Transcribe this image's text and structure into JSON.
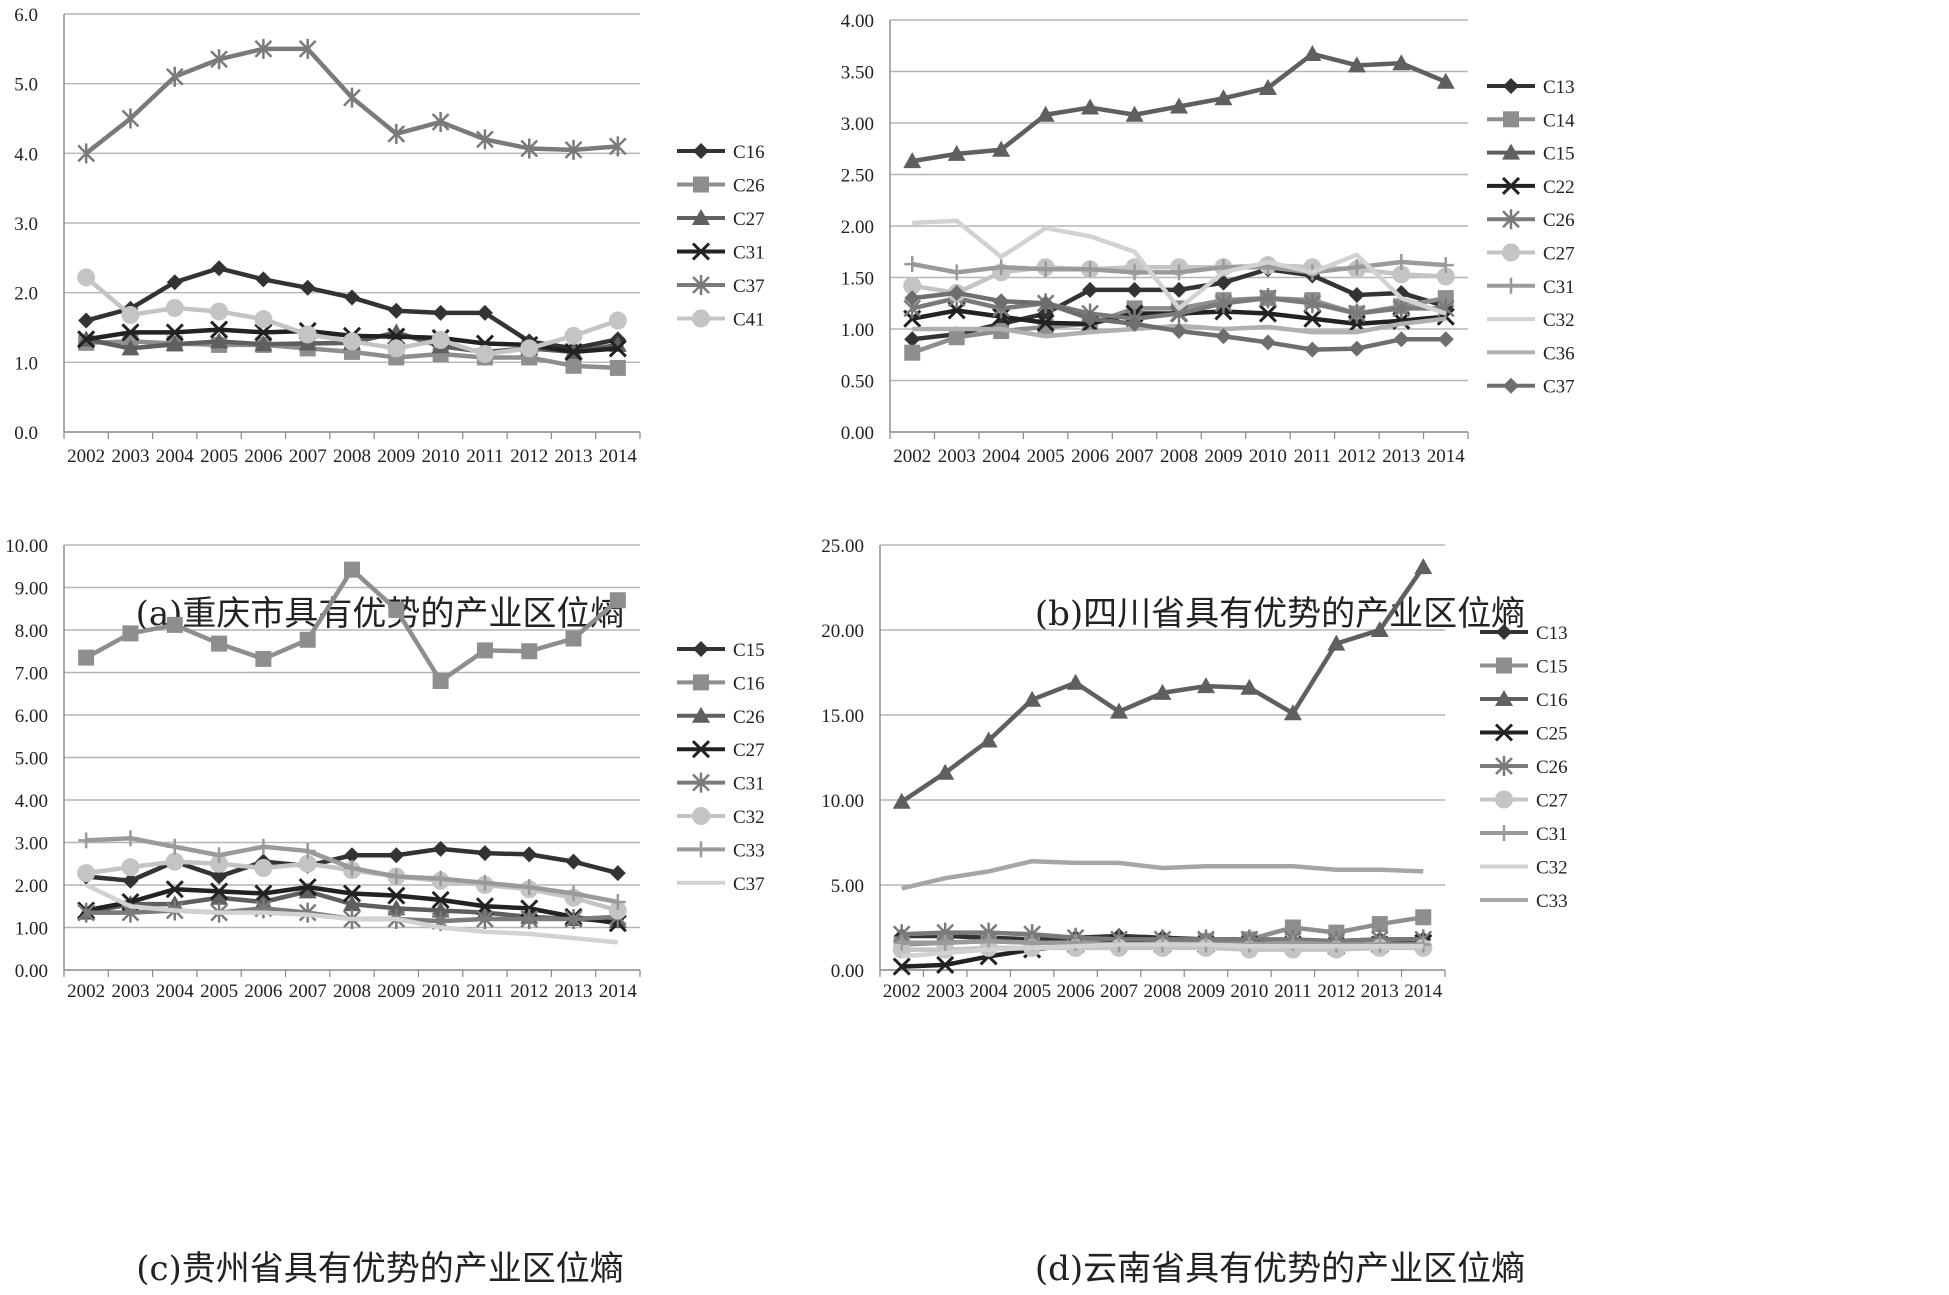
{
  "chart_data": [
    {
      "type": "line",
      "caption": "(a)重庆市具有优势的产业区位熵",
      "categories": [
        "2002",
        "2003",
        "2004",
        "2005",
        "2006",
        "2007",
        "2008",
        "2009",
        "2010",
        "2011",
        "2012",
        "2013",
        "2014"
      ],
      "ylim": [
        0,
        6
      ],
      "yticks": [
        "0.0",
        "1.0",
        "2.0",
        "3.0",
        "4.0",
        "5.0",
        "6.0"
      ],
      "legend_position": "right",
      "grid": true,
      "series": [
        {
          "name": "C16",
          "color": "#333333",
          "marker": "diamond",
          "values": [
            1.6,
            1.77,
            2.15,
            2.35,
            2.19,
            2.07,
            1.93,
            1.74,
            1.71,
            1.71,
            1.3,
            1.2,
            1.33
          ]
        },
        {
          "name": "C26",
          "color": "#8e8e8e",
          "marker": "square",
          "values": [
            1.28,
            1.3,
            1.27,
            1.25,
            1.25,
            1.2,
            1.15,
            1.07,
            1.12,
            1.07,
            1.07,
            0.95,
            0.92
          ]
        },
        {
          "name": "C27",
          "color": "#5f5f5f",
          "marker": "triangle",
          "values": [
            1.33,
            1.2,
            1.26,
            1.3,
            1.26,
            1.27,
            1.28,
            1.43,
            1.23,
            1.15,
            1.2,
            1.15,
            1.25
          ]
        },
        {
          "name": "C31",
          "color": "#222222",
          "marker": "x",
          "values": [
            1.33,
            1.43,
            1.43,
            1.47,
            1.43,
            1.45,
            1.38,
            1.37,
            1.35,
            1.27,
            1.25,
            1.15,
            1.2
          ]
        },
        {
          "name": "C37",
          "color": "#7a7a7a",
          "marker": "star",
          "values": [
            4.0,
            4.5,
            5.1,
            5.35,
            5.5,
            5.5,
            4.8,
            4.28,
            4.45,
            4.2,
            4.07,
            4.05,
            4.1
          ]
        },
        {
          "name": "C41",
          "color": "#c4c4c4",
          "marker": "circle",
          "values": [
            2.22,
            1.68,
            1.78,
            1.73,
            1.62,
            1.4,
            1.3,
            1.2,
            1.32,
            1.12,
            1.2,
            1.38,
            1.6
          ]
        }
      ]
    },
    {
      "type": "line",
      "caption": "(b)四川省具有优势的产业区位熵",
      "categories": [
        "2002",
        "2003",
        "2004",
        "2005",
        "2006",
        "2007",
        "2008",
        "2009",
        "2010",
        "2011",
        "2012",
        "2013",
        "2014"
      ],
      "ylim": [
        0,
        4
      ],
      "yticks": [
        "0.00",
        "0.50",
        "1.00",
        "1.50",
        "2.00",
        "2.50",
        "3.00",
        "3.50",
        "4.00"
      ],
      "legend_position": "right",
      "grid": true,
      "series": [
        {
          "name": "C13",
          "color": "#333333",
          "marker": "diamond",
          "values": [
            0.9,
            0.95,
            1.05,
            1.15,
            1.38,
            1.38,
            1.38,
            1.45,
            1.58,
            1.52,
            1.33,
            1.35,
            1.22
          ]
        },
        {
          "name": "C14",
          "color": "#8e8e8e",
          "marker": "square",
          "values": [
            0.77,
            0.92,
            0.98,
            1.02,
            1.05,
            1.2,
            1.2,
            1.28,
            1.3,
            1.28,
            1.15,
            1.22,
            1.3
          ]
        },
        {
          "name": "C15",
          "color": "#5f5f5f",
          "marker": "triangle",
          "values": [
            2.63,
            2.7,
            2.74,
            3.08,
            3.15,
            3.08,
            3.16,
            3.24,
            3.34,
            3.67,
            3.56,
            3.58,
            3.4
          ]
        },
        {
          "name": "C22",
          "color": "#222222",
          "marker": "x",
          "values": [
            1.1,
            1.18,
            1.12,
            1.06,
            1.05,
            1.15,
            1.15,
            1.17,
            1.15,
            1.1,
            1.05,
            1.08,
            1.12
          ]
        },
        {
          "name": "C26",
          "color": "#7a7a7a",
          "marker": "star",
          "values": [
            1.2,
            1.3,
            1.2,
            1.25,
            1.15,
            1.1,
            1.15,
            1.25,
            1.3,
            1.25,
            1.15,
            1.2,
            1.2
          ]
        },
        {
          "name": "C27",
          "color": "#c4c4c4",
          "marker": "circle",
          "values": [
            1.42,
            1.35,
            1.55,
            1.6,
            1.58,
            1.6,
            1.6,
            1.6,
            1.62,
            1.6,
            1.58,
            1.53,
            1.51
          ]
        },
        {
          "name": "C31",
          "color": "#9a9a9a",
          "marker": "plus",
          "values": [
            1.63,
            1.55,
            1.6,
            1.58,
            1.58,
            1.55,
            1.55,
            1.6,
            1.6,
            1.55,
            1.6,
            1.65,
            1.62
          ]
        },
        {
          "name": "C32",
          "color": "#d2d2d2",
          "marker": "none",
          "values": [
            2.03,
            2.05,
            1.7,
            1.98,
            1.9,
            1.75,
            1.2,
            1.55,
            1.65,
            1.55,
            1.72,
            1.3,
            1.15
          ]
        },
        {
          "name": "C36",
          "color": "#b0b0b0",
          "marker": "none",
          "values": [
            1.0,
            1.0,
            1.0,
            0.93,
            0.97,
            1.0,
            1.03,
            1.0,
            1.02,
            0.97,
            0.97,
            1.05,
            1.1
          ]
        },
        {
          "name": "C37",
          "color": "#6e6e6e",
          "marker": "diamond",
          "values": [
            1.3,
            1.35,
            1.27,
            1.25,
            1.1,
            1.05,
            0.98,
            0.93,
            0.87,
            0.8,
            0.81,
            0.9,
            0.9
          ]
        }
      ]
    },
    {
      "type": "line",
      "caption": "(c)贵州省具有优势的产业区位熵",
      "categories": [
        "2002",
        "2003",
        "2004",
        "2005",
        "2006",
        "2007",
        "2008",
        "2009",
        "2010",
        "2011",
        "2012",
        "2013",
        "2014"
      ],
      "ylim": [
        0,
        10
      ],
      "yticks": [
        "0.00",
        "1.00",
        "2.00",
        "3.00",
        "4.00",
        "5.00",
        "6.00",
        "7.00",
        "8.00",
        "9.00",
        "10.00"
      ],
      "legend_position": "right",
      "grid": true,
      "series": [
        {
          "name": "C15",
          "color": "#333333",
          "marker": "diamond",
          "values": [
            2.2,
            2.1,
            2.55,
            2.2,
            2.55,
            2.45,
            2.7,
            2.7,
            2.85,
            2.75,
            2.72,
            2.55,
            2.28
          ]
        },
        {
          "name": "C16",
          "color": "#8e8e8e",
          "marker": "square",
          "values": [
            7.35,
            7.92,
            8.12,
            7.68,
            7.32,
            7.77,
            9.42,
            8.48,
            6.8,
            7.52,
            7.5,
            7.8,
            8.7
          ]
        },
        {
          "name": "C26",
          "color": "#5f5f5f",
          "marker": "triangle",
          "values": [
            1.35,
            1.55,
            1.55,
            1.7,
            1.6,
            1.85,
            1.55,
            1.45,
            1.4,
            1.35,
            1.25,
            1.2,
            1.15
          ]
        },
        {
          "name": "C27",
          "color": "#222222",
          "marker": "x",
          "values": [
            1.4,
            1.6,
            1.9,
            1.85,
            1.8,
            1.95,
            1.8,
            1.75,
            1.65,
            1.5,
            1.45,
            1.25,
            1.1
          ]
        },
        {
          "name": "C31",
          "color": "#7a7a7a",
          "marker": "star",
          "values": [
            1.35,
            1.35,
            1.4,
            1.35,
            1.45,
            1.35,
            1.2,
            1.2,
            1.15,
            1.2,
            1.2,
            1.2,
            1.25
          ]
        },
        {
          "name": "C32",
          "color": "#c4c4c4",
          "marker": "circle",
          "values": [
            2.28,
            2.42,
            2.55,
            2.5,
            2.4,
            2.5,
            2.35,
            2.2,
            2.1,
            2.0,
            1.9,
            1.7,
            1.4
          ]
        },
        {
          "name": "C33",
          "color": "#9a9a9a",
          "marker": "plus",
          "values": [
            3.05,
            3.1,
            2.9,
            2.7,
            2.9,
            2.8,
            2.4,
            2.2,
            2.15,
            2.05,
            1.95,
            1.8,
            1.6
          ]
        },
        {
          "name": "C37",
          "color": "#d2d2d2",
          "marker": "none",
          "values": [
            2.0,
            1.5,
            1.4,
            1.35,
            1.35,
            1.3,
            1.2,
            1.2,
            1.0,
            0.9,
            0.85,
            0.75,
            0.65
          ]
        }
      ]
    },
    {
      "type": "line",
      "caption": "(d)云南省具有优势的产业区位熵",
      "categories": [
        "2002",
        "2003",
        "2004",
        "2005",
        "2006",
        "2007",
        "2008",
        "2009",
        "2010",
        "2011",
        "2012",
        "2013",
        "2014"
      ],
      "ylim": [
        0,
        25
      ],
      "yticks": [
        "0.00",
        "5.00",
        "10.00",
        "15.00",
        "20.00",
        "25.00"
      ],
      "legend_position": "right",
      "grid": true,
      "series": [
        {
          "name": "C13",
          "color": "#333333",
          "marker": "diamond",
          "values": [
            2.0,
            2.0,
            1.9,
            1.8,
            1.9,
            2.0,
            1.9,
            1.8,
            1.8,
            1.7,
            1.7,
            1.8,
            1.8
          ]
        },
        {
          "name": "C15",
          "color": "#8e8e8e",
          "marker": "square",
          "values": [
            1.5,
            1.6,
            1.7,
            1.6,
            1.6,
            1.6,
            1.6,
            1.7,
            1.8,
            2.5,
            2.2,
            2.7,
            3.1
          ]
        },
        {
          "name": "C16",
          "color": "#5f5f5f",
          "marker": "triangle",
          "values": [
            9.9,
            11.6,
            13.5,
            15.9,
            16.9,
            15.2,
            16.3,
            16.7,
            16.6,
            15.1,
            19.2,
            20.0,
            23.7
          ]
        },
        {
          "name": "C25",
          "color": "#222222",
          "marker": "x",
          "values": [
            0.2,
            0.3,
            0.8,
            1.2,
            1.5,
            1.6,
            1.5,
            1.5,
            1.5,
            1.5,
            1.4,
            1.5,
            1.6
          ]
        },
        {
          "name": "C26",
          "color": "#7a7a7a",
          "marker": "star",
          "values": [
            2.1,
            2.2,
            2.2,
            2.1,
            1.9,
            1.8,
            1.8,
            1.8,
            1.8,
            1.8,
            1.7,
            1.8,
            1.8
          ]
        },
        {
          "name": "C27",
          "color": "#c4c4c4",
          "marker": "circle",
          "values": [
            1.2,
            1.2,
            1.3,
            1.3,
            1.3,
            1.3,
            1.3,
            1.3,
            1.2,
            1.2,
            1.2,
            1.3,
            1.3
          ]
        },
        {
          "name": "C31",
          "color": "#9a9a9a",
          "marker": "plus",
          "values": [
            1.6,
            1.6,
            1.7,
            1.6,
            1.6,
            1.5,
            1.5,
            1.5,
            1.5,
            1.6,
            1.5,
            1.5,
            1.5
          ]
        },
        {
          "name": "C32",
          "color": "#d2d2d2",
          "marker": "none",
          "values": [
            0.8,
            1.0,
            1.2,
            1.3,
            1.4,
            1.5,
            1.5,
            1.5,
            1.4,
            1.4,
            1.4,
            1.4,
            1.4
          ]
        },
        {
          "name": "C33",
          "color": "#a6a6a6",
          "marker": "none",
          "values": [
            4.8,
            5.4,
            5.8,
            6.4,
            6.3,
            6.3,
            6.0,
            6.1,
            6.1,
            6.1,
            5.9,
            5.9,
            5.8
          ]
        }
      ]
    }
  ]
}
